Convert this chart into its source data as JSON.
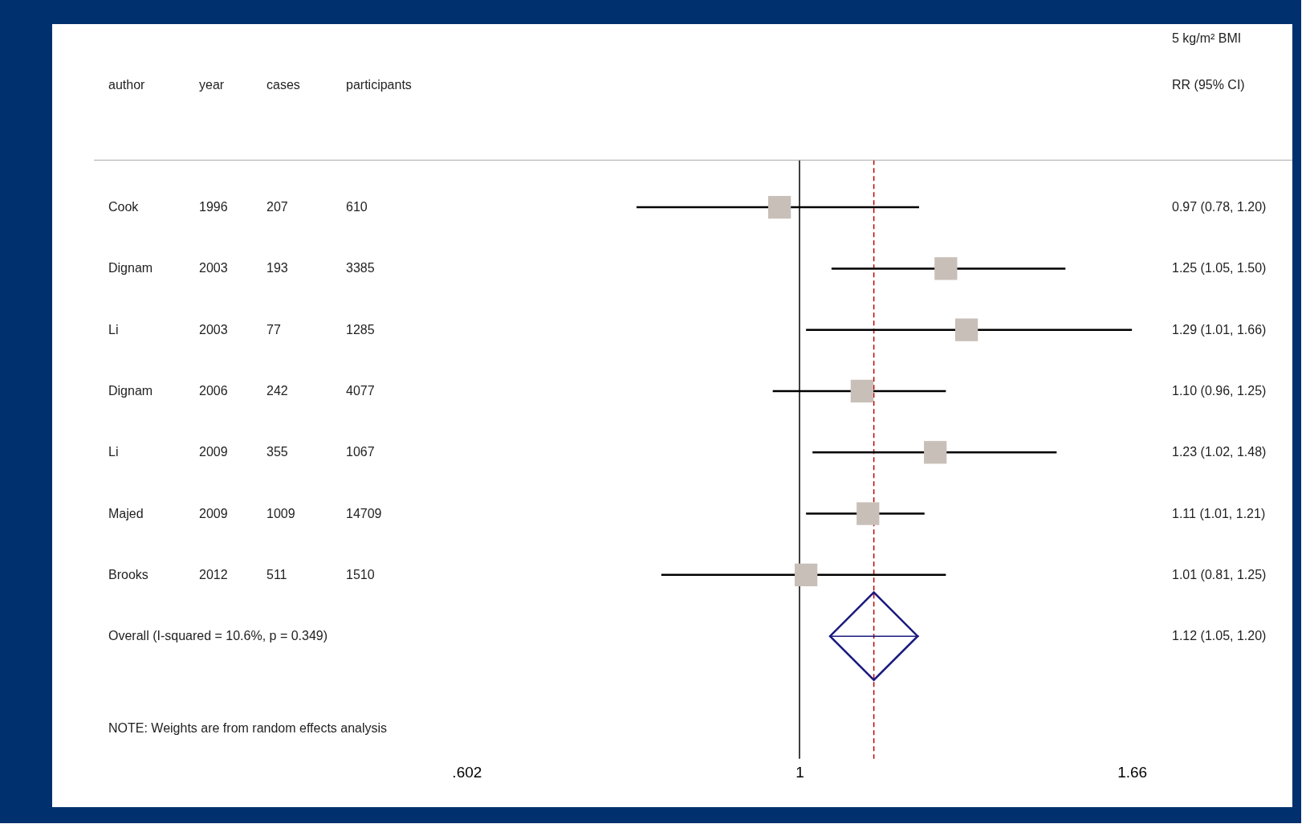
{
  "chart_data": {
    "type": "scatter",
    "orientation": "horizontal",
    "log": "x",
    "grid": false,
    "tick_labels": "x",
    "categories": [
      "Cook",
      "Dignam",
      "Li",
      "Dignam",
      "Li",
      "Majed",
      "Brooks",
      "Overall  (I-squared = 10.6%, p = 0.349)"
    ],
    "series": [
      {
        "marker": "square",
        "color": "#c8bfb8",
        "values": [
          0.97,
          1.25,
          1.29,
          1.1,
          1.23,
          1.11,
          1.01,
          null
        ],
        "errors": [
          [
            0.78,
            1.2
          ],
          [
            1.05,
            1.5
          ],
          [
            1.01,
            1.66
          ],
          [
            0.96,
            1.25
          ],
          [
            1.02,
            1.48
          ],
          [
            1.01,
            1.21
          ],
          [
            0.81,
            1.25
          ],
          null
        ]
      },
      {
        "marker": "diamond",
        "color": "#1a1a80",
        "values": [
          null,
          null,
          null,
          null,
          null,
          null,
          null,
          1.12
        ],
        "errors": [
          null,
          null,
          null,
          null,
          null,
          null,
          null,
          [
            1.05,
            1.2
          ]
        ]
      }
    ],
    "xlim": [
      0.32,
      2.12
    ],
    "xticks": [
      {
        "value": 0.602,
        "label": ".602"
      },
      1,
      1.66
    ],
    "ref_lines": [
      {
        "axis": "x",
        "value": 1,
        "color": "#000000",
        "line_style": "solid"
      },
      {
        "axis": "x",
        "value": 1.12,
        "color": "#c00000",
        "line_style": "dashed"
      }
    ],
    "annotations": [
      "author",
      "year",
      "cases",
      "participants",
      "5 kg/m² BMI",
      "RR (95% CI)",
      "1996",
      "207",
      "610",
      "2003",
      "193",
      "3385",
      "2003",
      "77",
      "1285",
      "2006",
      "242",
      "4077",
      "2009",
      "355",
      "1067",
      "2009",
      "1009",
      "14709",
      "2012",
      "511",
      "1510",
      "0.97 (0.78, 1.20)",
      "1.25 (1.05, 1.50)",
      "1.29 (1.01, 1.66)",
      "1.10 (0.96, 1.25)",
      "1.23 (1.02, 1.48)",
      "1.11 (1.01, 1.21)",
      "1.01 (0.81, 1.25)",
      "1.12 (1.05, 1.20)",
      "NOTE: Weights are from random effects analysis"
    ]
  }
}
